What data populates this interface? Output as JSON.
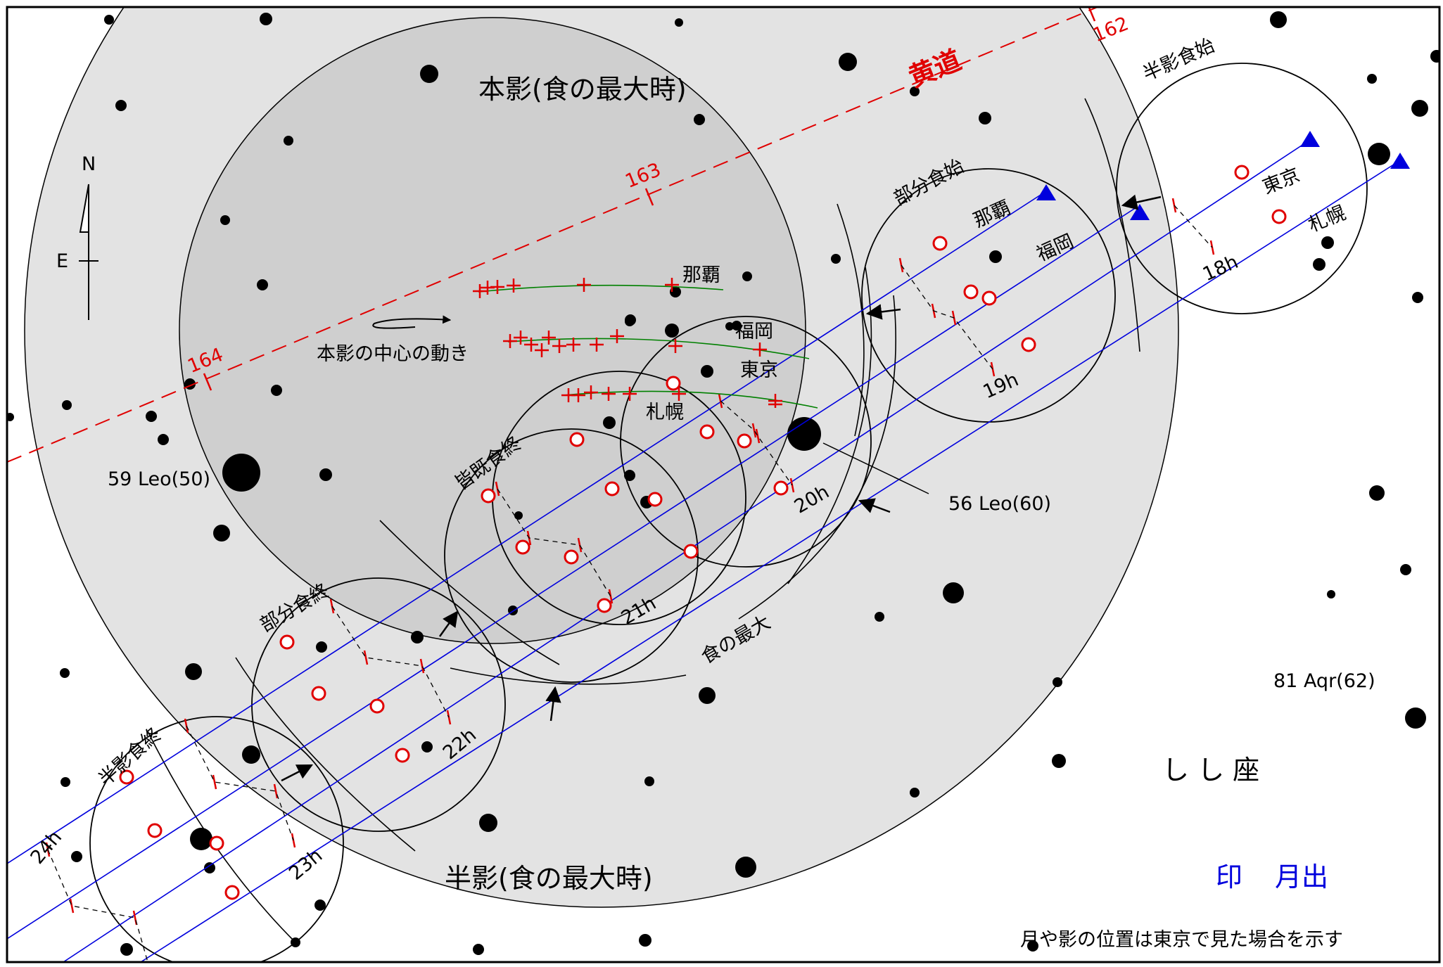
{
  "labels": {
    "umbra": "本影(食の最大時)",
    "penumbra": "半影(食の最大時)",
    "ecliptic": "黄道",
    "umbra_motion": "本影の中心の動き",
    "partial_start": "部分食始",
    "partial_end": "部分食終",
    "penumbral_start": "半影食始",
    "penumbral_end": "半影食終",
    "total_end": "皆既食終",
    "max_eclipse": "食の最大",
    "constellation": "し し 座",
    "legend_mark": "印",
    "legend_text": "月出",
    "note": "月や影の位置は東京で見た場合を示す",
    "compass_n": "N",
    "compass_e": "E"
  },
  "ecliptic_ticks": [
    "162",
    "163",
    "164"
  ],
  "cities": {
    "naha": "那覇",
    "fukuoka": "福岡",
    "tokyo": "東京",
    "sapporo": "札幌"
  },
  "stars": {
    "leo59": "59 Leo(50)",
    "leo56": "56 Leo(60)",
    "aqr81": "81 Aqr(62)"
  },
  "hours": [
    "18h",
    "19h",
    "20h",
    "21h",
    "22h",
    "23h",
    "24h"
  ],
  "colors": {
    "penumbra": "#e3e3e3",
    "umbra": "#cfcfcf",
    "ecliptic": "#e00000",
    "track": "#0000dd",
    "marker": "#e00000",
    "umbra_path": "#008000"
  }
}
